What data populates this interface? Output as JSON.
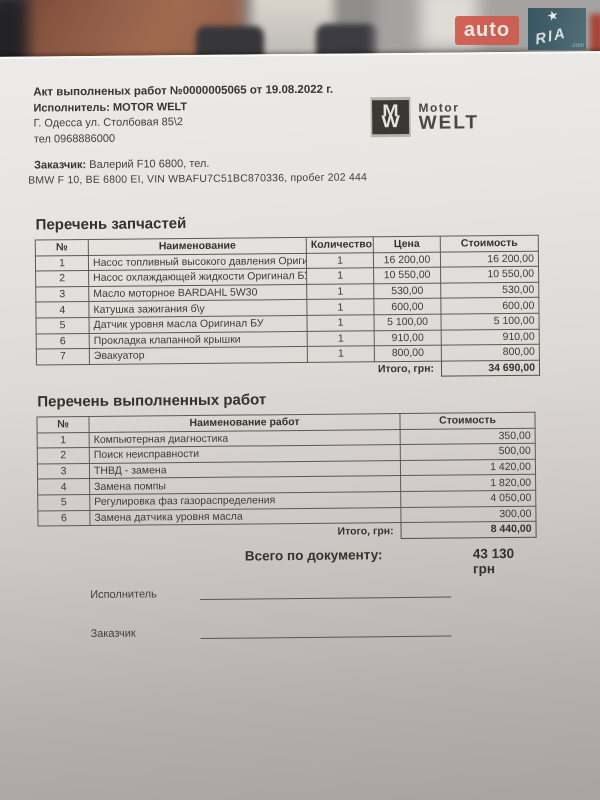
{
  "watermark": {
    "auto_label": "auto",
    "ria_label": "RIA",
    "ria_dotcom": ".com",
    "star_icon": "★",
    "auto_bg": "#d05a4e",
    "ria_bg_left": "#33525e",
    "ria_bg_right": "#506c75"
  },
  "header": {
    "title": "Акт выполненых работ №0000005065 от 19.08.2022 г.",
    "executor_label": "Исполнитель:",
    "executor_value": "MOTOR WELT",
    "address": "Г. Одесса ул. Столбовая 85\\2",
    "phone": "тел 0968886000",
    "customer_label": "Заказчик:",
    "customer_value": "Валерий F10 6800,  тел.",
    "vehicle_line": "BMW F 10, BE 6800 EI, VIN WBAFU7C51BC870336, пробег 202 444"
  },
  "logo": {
    "monogram_top": "M",
    "monogram_bottom": "W",
    "brand_top": "Motor",
    "brand_bottom": "WELT"
  },
  "parts_table": {
    "section_title": "Перечень запчастей",
    "columns": [
      "№",
      "Наименование",
      "Количество",
      "Цена",
      "Стоимость"
    ],
    "rows": [
      [
        "1",
        "Насос топливный высокого давления Ориги",
        "1",
        "16 200,00",
        "16 200,00"
      ],
      [
        "2",
        "Насос охлаждающей жидкости Оригинал БУ",
        "1",
        "10 550,00",
        "10 550,00"
      ],
      [
        "3",
        "Масло моторное BARDAHL 5W30",
        "1",
        "530,00",
        "530,00"
      ],
      [
        "4",
        "Катушка зажигания б\\у",
        "1",
        "600,00",
        "600,00"
      ],
      [
        "5",
        "Датчик уровня масла Оригинал БУ",
        "1",
        "5 100,00",
        "5 100,00"
      ],
      [
        "6",
        "Прокладка клапанной крышки",
        "1",
        "910,00",
        "910,00"
      ],
      [
        "7",
        "Эвакуатор",
        "1",
        "800,00",
        "800,00"
      ]
    ],
    "total_label": "Итого, грн:",
    "total_value": "34 690,00"
  },
  "works_table": {
    "section_title": "Перечень выполненных работ",
    "columns": [
      "№",
      "Наименование работ",
      "Стоимость"
    ],
    "rows": [
      [
        "1",
        "Компьютерная диагностика",
        "350,00"
      ],
      [
        "2",
        "Поиск неисправности",
        "500,00"
      ],
      [
        "3",
        "ТНВД - замена",
        "1 420,00"
      ],
      [
        "4",
        "Замена помпы",
        "1 820,00"
      ],
      [
        "5",
        "Регулировка фаз газораспределения",
        "4 050,00"
      ],
      [
        "6",
        "Замена датчика уровня масла",
        "300,00"
      ]
    ],
    "total_label": "Итого, грн:",
    "total_value": "8 440,00"
  },
  "summary": {
    "label": "Всего по документу:",
    "value": "43 130 грн"
  },
  "signatures": [
    {
      "label": "Исполнитель"
    },
    {
      "label": "Заказчик"
    }
  ]
}
